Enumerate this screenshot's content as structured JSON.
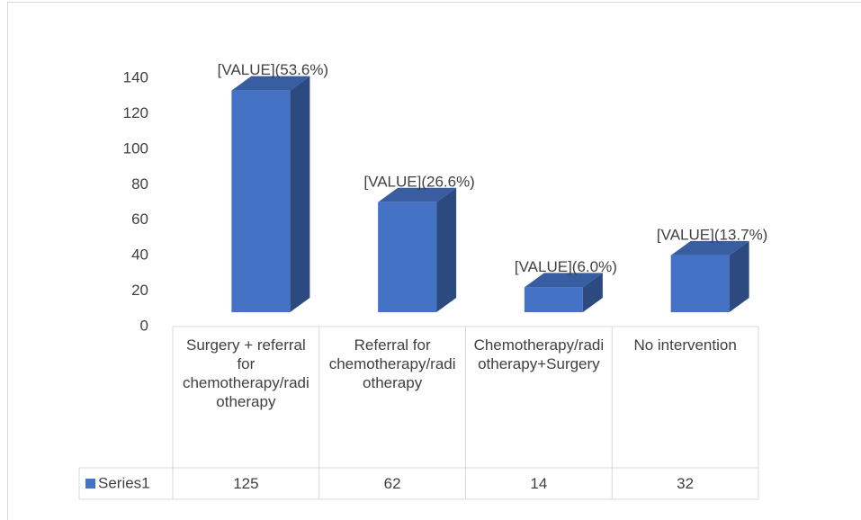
{
  "chart_data": {
    "type": "bar3d",
    "categories": [
      "Surgery + referral for chemotherapy/radiotherapy",
      "Referral for chemotherapy/radiotherapy",
      "Chemotherapy/radiotherapy+Surgery",
      "No intervention"
    ],
    "series": [
      {
        "name": "Series1",
        "color": "#4472c4",
        "values": [
          125,
          62,
          14,
          32
        ]
      }
    ],
    "data_labels": [
      "[VALUE](53.6%)",
      "[VALUE](26.6%)",
      "[VALUE](6.0%)",
      "[VALUE](13.7%)"
    ],
    "ylim": [
      0,
      140
    ],
    "yticks": [
      0,
      20,
      40,
      60,
      80,
      100,
      120,
      140
    ],
    "data_table": true,
    "legend": "table"
  }
}
